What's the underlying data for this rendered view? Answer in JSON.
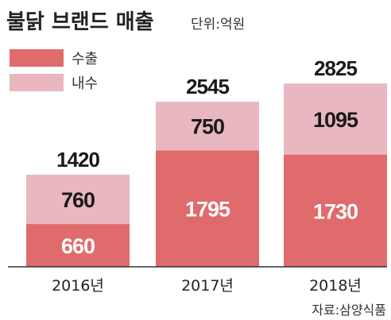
{
  "title": "불닭 브랜드 매출",
  "unit_note": "단위:억원",
  "source": "자료:삼양식품",
  "colors": {
    "export": "#e06b6c",
    "domestic": "#e8b7bf",
    "text_dark": "#1a1a1a",
    "label_on_domestic": "#1a1a1a",
    "label_on_export": "#ffffff"
  },
  "chart_data": {
    "type": "bar",
    "stacked": true,
    "title": "불닭 브랜드 매출",
    "categories": [
      "2016년",
      "2017년",
      "2018년"
    ],
    "series": [
      {
        "name": "수출",
        "values": [
          660,
          1795,
          1730
        ]
      },
      {
        "name": "내수",
        "values": [
          760,
          750,
          1095
        ]
      }
    ],
    "totals": [
      1420,
      2545,
      2825
    ],
    "ylim": [
      0,
      3000
    ],
    "grid": false,
    "legend_position": "top-left"
  }
}
